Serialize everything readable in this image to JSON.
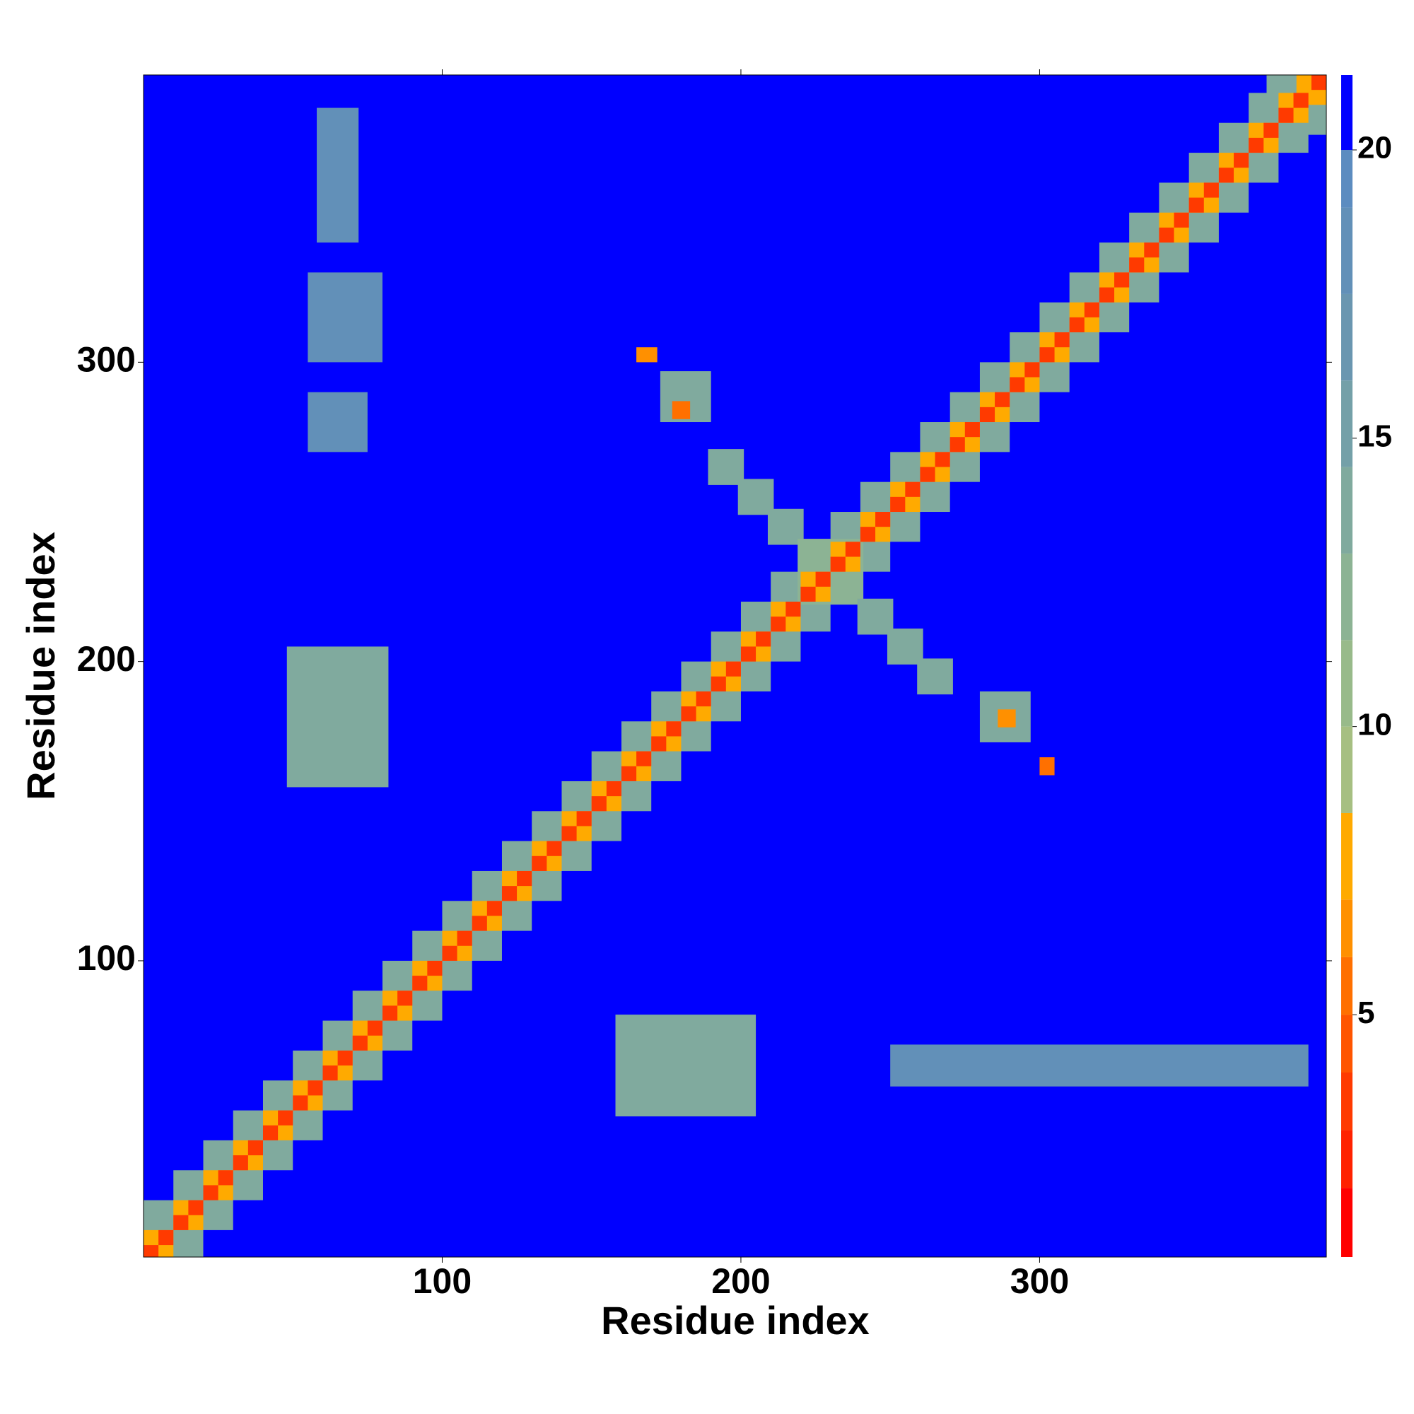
{
  "chart_data": {
    "type": "heatmap",
    "x_label": "Residue index",
    "y_label": "Residue index",
    "xlim": [
      0,
      396
    ],
    "ylim": [
      1,
      396
    ],
    "xticks": [
      100,
      200,
      300
    ],
    "yticks": [
      100,
      200,
      300
    ],
    "colorbar": {
      "levels": [
        0.8,
        2,
        3,
        4,
        5,
        6,
        7,
        8.5,
        10,
        11.5,
        13,
        14.5,
        16,
        17.5,
        19,
        20,
        21.3
      ],
      "colors": [
        "#ff0000",
        "#ff2200",
        "#ff3a00",
        "#ff5500",
        "#ff7000",
        "#ff9000",
        "#ffaa00",
        "#a6bf82",
        "#98ba8a",
        "#8cb394",
        "#80aa9e",
        "#74a0a8",
        "#6a96b0",
        "#6290b8",
        "#5c8cc0",
        "#0000ff"
      ],
      "ticks": [
        5,
        10,
        15,
        20
      ]
    },
    "cells": [
      [
        0,
        396,
        1,
        396,
        21
      ],
      [
        0,
        20,
        0,
        20,
        13
      ],
      [
        10,
        30,
        10,
        30,
        13
      ],
      [
        20,
        40,
        20,
        40,
        13
      ],
      [
        30,
        50,
        30,
        50,
        13
      ],
      [
        40,
        60,
        40,
        60,
        13
      ],
      [
        50,
        70,
        50,
        70,
        13
      ],
      [
        60,
        80,
        60,
        80,
        13
      ],
      [
        70,
        90,
        70,
        90,
        13
      ],
      [
        80,
        100,
        80,
        100,
        13
      ],
      [
        90,
        110,
        90,
        110,
        13
      ],
      [
        100,
        120,
        100,
        120,
        13
      ],
      [
        110,
        130,
        110,
        130,
        13
      ],
      [
        120,
        140,
        120,
        140,
        13
      ],
      [
        130,
        150,
        130,
        150,
        13
      ],
      [
        140,
        160,
        140,
        160,
        13
      ],
      [
        150,
        170,
        150,
        170,
        13
      ],
      [
        160,
        180,
        160,
        180,
        13
      ],
      [
        170,
        190,
        170,
        190,
        13
      ],
      [
        180,
        200,
        180,
        200,
        13
      ],
      [
        190,
        210,
        190,
        210,
        13
      ],
      [
        200,
        220,
        200,
        220,
        13
      ],
      [
        210,
        230,
        210,
        230,
        13
      ],
      [
        220,
        240,
        220,
        240,
        13
      ],
      [
        230,
        250,
        230,
        250,
        13
      ],
      [
        240,
        260,
        240,
        260,
        13
      ],
      [
        250,
        270,
        250,
        270,
        13
      ],
      [
        260,
        280,
        260,
        280,
        13
      ],
      [
        270,
        290,
        270,
        290,
        13
      ],
      [
        280,
        300,
        280,
        300,
        13
      ],
      [
        290,
        310,
        290,
        310,
        13
      ],
      [
        300,
        320,
        300,
        320,
        13
      ],
      [
        310,
        330,
        310,
        330,
        13
      ],
      [
        320,
        340,
        320,
        340,
        13
      ],
      [
        330,
        350,
        330,
        350,
        13
      ],
      [
        340,
        360,
        340,
        360,
        13
      ],
      [
        350,
        370,
        350,
        370,
        13
      ],
      [
        360,
        380,
        360,
        380,
        13
      ],
      [
        370,
        390,
        370,
        390,
        13
      ],
      [
        376,
        396,
        376,
        396,
        13
      ],
      [
        48,
        82,
        158,
        205,
        13
      ],
      [
        158,
        205,
        48,
        82,
        13
      ],
      [
        189,
        201,
        259,
        271,
        14
      ],
      [
        199,
        211,
        249,
        261,
        14
      ],
      [
        209,
        221,
        239,
        251,
        14
      ],
      [
        219,
        241,
        219,
        241,
        12
      ],
      [
        239,
        251,
        209,
        221,
        14
      ],
      [
        249,
        261,
        199,
        211,
        14
      ],
      [
        259,
        271,
        189,
        201,
        14
      ],
      [
        173,
        190,
        280,
        297,
        13
      ],
      [
        280,
        297,
        173,
        190,
        13
      ],
      [
        55,
        75,
        270,
        290,
        18
      ],
      [
        55,
        80,
        300,
        330,
        18
      ],
      [
        58,
        72,
        340,
        385,
        18
      ],
      [
        250,
        390,
        58,
        72,
        18
      ],
      [
        286,
        292,
        178,
        184,
        6
      ],
      [
        300,
        305,
        162,
        168,
        5
      ],
      [
        165,
        172,
        300,
        305,
        6
      ],
      [
        177,
        183,
        281,
        287,
        5
      ],
      [
        0,
        10,
        0,
        10,
        7
      ],
      [
        10,
        20,
        10,
        20,
        7
      ],
      [
        20,
        30,
        20,
        30,
        7
      ],
      [
        30,
        40,
        30,
        40,
        7
      ],
      [
        40,
        50,
        40,
        50,
        7
      ],
      [
        50,
        60,
        50,
        60,
        7
      ],
      [
        60,
        70,
        60,
        70,
        7
      ],
      [
        70,
        80,
        70,
        80,
        7
      ],
      [
        80,
        90,
        80,
        90,
        7
      ],
      [
        90,
        100,
        90,
        100,
        7
      ],
      [
        100,
        110,
        100,
        110,
        7
      ],
      [
        110,
        120,
        110,
        120,
        7
      ],
      [
        120,
        130,
        120,
        130,
        7
      ],
      [
        130,
        140,
        130,
        140,
        7
      ],
      [
        140,
        150,
        140,
        150,
        7
      ],
      [
        150,
        160,
        150,
        160,
        7
      ],
      [
        160,
        170,
        160,
        170,
        7
      ],
      [
        170,
        180,
        170,
        180,
        7
      ],
      [
        180,
        190,
        180,
        190,
        7
      ],
      [
        190,
        200,
        190,
        200,
        7
      ],
      [
        200,
        210,
        200,
        210,
        7
      ],
      [
        210,
        220,
        210,
        220,
        7
      ],
      [
        220,
        230,
        220,
        230,
        7
      ],
      [
        230,
        240,
        230,
        240,
        7
      ],
      [
        240,
        250,
        240,
        250,
        7
      ],
      [
        250,
        260,
        250,
        260,
        7
      ],
      [
        260,
        270,
        260,
        270,
        7
      ],
      [
        270,
        280,
        270,
        280,
        7
      ],
      [
        280,
        290,
        280,
        290,
        7
      ],
      [
        290,
        300,
        290,
        300,
        7
      ],
      [
        300,
        310,
        300,
        310,
        7
      ],
      [
        310,
        320,
        310,
        320,
        7
      ],
      [
        320,
        330,
        320,
        330,
        7
      ],
      [
        330,
        340,
        330,
        340,
        7
      ],
      [
        340,
        350,
        340,
        350,
        7
      ],
      [
        350,
        360,
        350,
        360,
        7
      ],
      [
        360,
        370,
        360,
        370,
        7
      ],
      [
        370,
        380,
        370,
        380,
        7
      ],
      [
        380,
        390,
        380,
        390,
        7
      ],
      [
        386,
        396,
        386,
        396,
        7
      ],
      [
        0,
        5,
        0,
        5,
        3
      ],
      [
        5,
        10,
        5,
        10,
        3
      ],
      [
        10,
        15,
        10,
        15,
        3
      ],
      [
        15,
        20,
        15,
        20,
        3
      ],
      [
        20,
        25,
        20,
        25,
        3
      ],
      [
        25,
        30,
        25,
        30,
        3
      ],
      [
        30,
        35,
        30,
        35,
        3
      ],
      [
        35,
        40,
        35,
        40,
        3
      ],
      [
        40,
        45,
        40,
        45,
        3
      ],
      [
        45,
        50,
        45,
        50,
        3
      ],
      [
        50,
        55,
        50,
        55,
        3
      ],
      [
        55,
        60,
        55,
        60,
        3
      ],
      [
        60,
        65,
        60,
        65,
        3
      ],
      [
        65,
        70,
        65,
        70,
        3
      ],
      [
        70,
        75,
        70,
        75,
        3
      ],
      [
        75,
        80,
        75,
        80,
        3
      ],
      [
        80,
        85,
        80,
        85,
        3
      ],
      [
        85,
        90,
        85,
        90,
        3
      ],
      [
        90,
        95,
        90,
        95,
        3
      ],
      [
        95,
        100,
        95,
        100,
        3
      ],
      [
        100,
        105,
        100,
        105,
        3
      ],
      [
        105,
        110,
        105,
        110,
        3
      ],
      [
        110,
        115,
        110,
        115,
        3
      ],
      [
        115,
        120,
        115,
        120,
        3
      ],
      [
        120,
        125,
        120,
        125,
        3
      ],
      [
        125,
        130,
        125,
        130,
        3
      ],
      [
        130,
        135,
        130,
        135,
        3
      ],
      [
        135,
        140,
        135,
        140,
        3
      ],
      [
        140,
        145,
        140,
        145,
        3
      ],
      [
        145,
        150,
        145,
        150,
        3
      ],
      [
        150,
        155,
        150,
        155,
        3
      ],
      [
        155,
        160,
        155,
        160,
        3
      ],
      [
        160,
        165,
        160,
        165,
        3
      ],
      [
        165,
        170,
        165,
        170,
        3
      ],
      [
        170,
        175,
        170,
        175,
        3
      ],
      [
        175,
        180,
        175,
        180,
        3
      ],
      [
        180,
        185,
        180,
        185,
        3
      ],
      [
        185,
        190,
        185,
        190,
        3
      ],
      [
        190,
        195,
        190,
        195,
        3
      ],
      [
        195,
        200,
        195,
        200,
        3
      ],
      [
        200,
        205,
        200,
        205,
        3
      ],
      [
        205,
        210,
        205,
        210,
        3
      ],
      [
        210,
        215,
        210,
        215,
        3
      ],
      [
        215,
        220,
        215,
        220,
        3
      ],
      [
        220,
        225,
        220,
        225,
        3
      ],
      [
        225,
        230,
        225,
        230,
        3
      ],
      [
        230,
        235,
        230,
        235,
        3
      ],
      [
        235,
        240,
        235,
        240,
        3
      ],
      [
        240,
        245,
        240,
        245,
        3
      ],
      [
        245,
        250,
        245,
        250,
        3
      ],
      [
        250,
        255,
        250,
        255,
        3
      ],
      [
        255,
        260,
        255,
        260,
        3
      ],
      [
        260,
        265,
        260,
        265,
        3
      ],
      [
        265,
        270,
        265,
        270,
        3
      ],
      [
        270,
        275,
        270,
        275,
        3
      ],
      [
        275,
        280,
        275,
        280,
        3
      ],
      [
        280,
        285,
        280,
        285,
        3
      ],
      [
        285,
        290,
        285,
        290,
        3
      ],
      [
        290,
        295,
        290,
        295,
        3
      ],
      [
        295,
        300,
        295,
        300,
        3
      ],
      [
        300,
        305,
        300,
        305,
        3
      ],
      [
        305,
        310,
        305,
        310,
        3
      ],
      [
        310,
        315,
        310,
        315,
        3
      ],
      [
        315,
        320,
        315,
        320,
        3
      ],
      [
        320,
        325,
        320,
        325,
        3
      ],
      [
        325,
        330,
        325,
        330,
        3
      ],
      [
        330,
        335,
        330,
        335,
        3
      ],
      [
        335,
        340,
        335,
        340,
        3
      ],
      [
        340,
        345,
        340,
        345,
        3
      ],
      [
        345,
        350,
        345,
        350,
        3
      ],
      [
        350,
        355,
        350,
        355,
        3
      ],
      [
        355,
        360,
        355,
        360,
        3
      ],
      [
        360,
        365,
        360,
        365,
        3
      ],
      [
        365,
        370,
        365,
        370,
        3
      ],
      [
        370,
        375,
        370,
        375,
        3
      ],
      [
        375,
        380,
        375,
        380,
        3
      ],
      [
        380,
        385,
        380,
        385,
        3
      ],
      [
        385,
        390,
        385,
        390,
        3
      ],
      [
        391,
        396,
        391,
        396,
        3
      ]
    ]
  }
}
